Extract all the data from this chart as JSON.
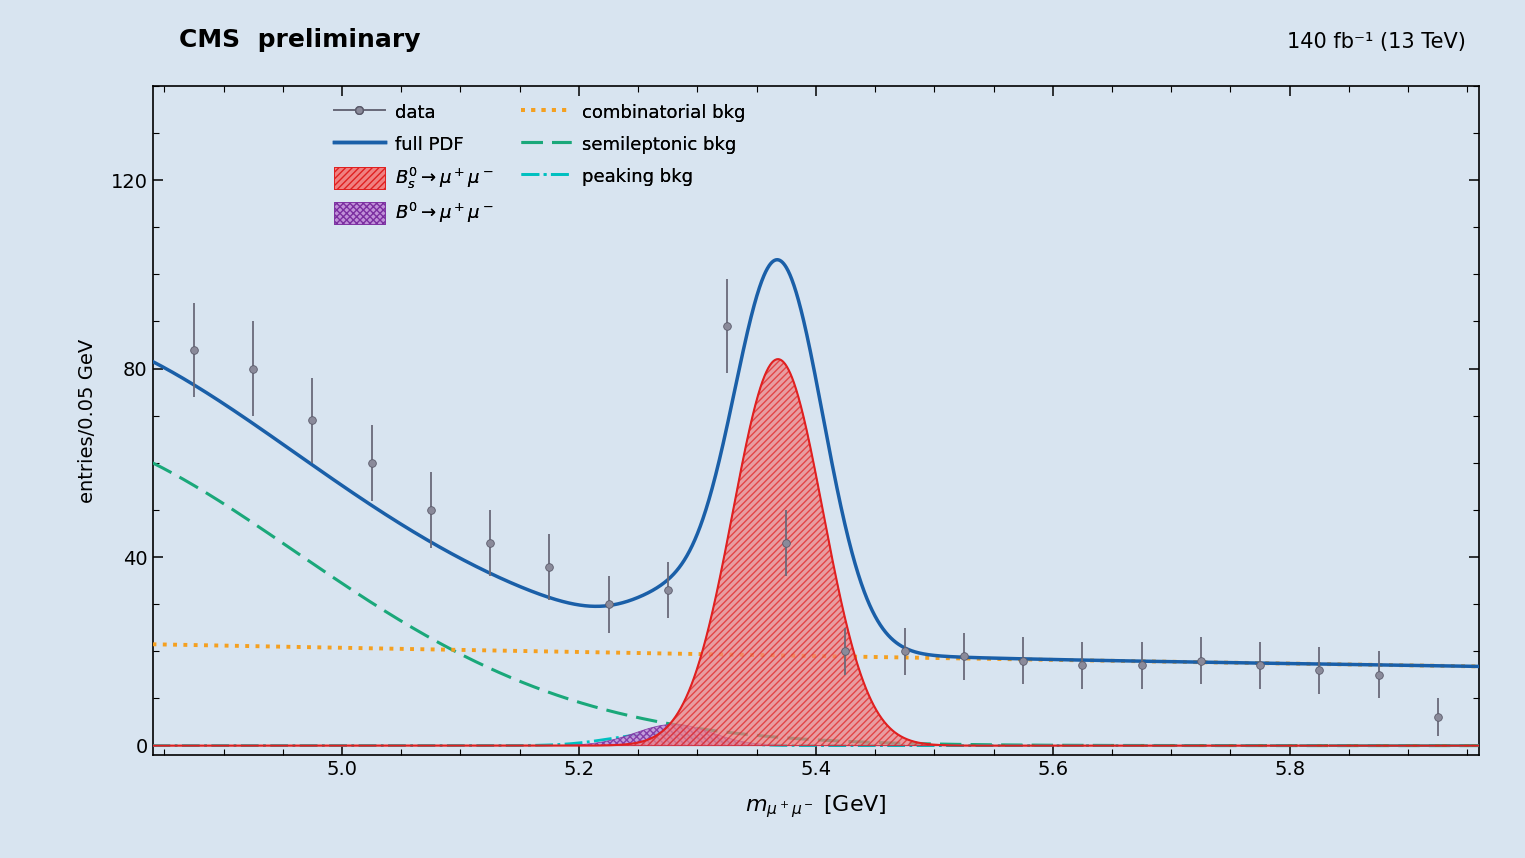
{
  "title_left": "CMS  preliminary",
  "title_right": "140 fb⁻¹ (13 TeV)",
  "ylabel": "entries/0.05 GeV",
  "xlim": [
    4.84,
    5.96
  ],
  "ylim": [
    -2,
    140
  ],
  "yticks": [
    0,
    40,
    80,
    120
  ],
  "xticks": [
    5.0,
    5.2,
    5.4,
    5.6,
    5.8
  ],
  "bg_color": "#d8e4f0",
  "plot_bg_color": "#d8e4f0",
  "data_x": [
    4.875,
    4.925,
    4.975,
    5.025,
    5.075,
    5.125,
    5.175,
    5.225,
    5.275,
    5.325,
    5.375,
    5.425,
    5.475,
    5.525,
    5.575,
    5.625,
    5.675,
    5.725,
    5.775,
    5.825,
    5.875,
    5.925
  ],
  "data_y": [
    84,
    80,
    69,
    60,
    50,
    43,
    38,
    30,
    33,
    89,
    43,
    20,
    20,
    19,
    18,
    17,
    17,
    18,
    17,
    16,
    15,
    6
  ],
  "data_yerr": [
    10,
    10,
    9,
    8,
    8,
    7,
    7,
    6,
    6,
    10,
    7,
    5,
    5,
    5,
    5,
    5,
    5,
    5,
    5,
    5,
    5,
    4
  ],
  "full_pdf_color": "#1a5fa8",
  "bs_color": "#e02020",
  "b0_color": "#7b2fa0",
  "comb_bkg_color": "#f5a020",
  "semilep_bkg_color": "#1aa87a",
  "peaking_bkg_color": "#00c0c0",
  "bs_mu": 5.368,
  "bs_sigma": 0.038,
  "bs_amp": 82.0,
  "b0_mu": 5.28,
  "b0_sigma": 0.032,
  "b0_amp": 4.5,
  "comb_a": 21.5,
  "comb_b": -0.22,
  "comb_x0": 4.84,
  "semilep_amp": 68.0,
  "semilep_mu": 4.72,
  "semilep_sigma": 0.24,
  "peaking_mu": 5.265,
  "peaking_sigma": 0.038,
  "peaking_amp": 2.5
}
